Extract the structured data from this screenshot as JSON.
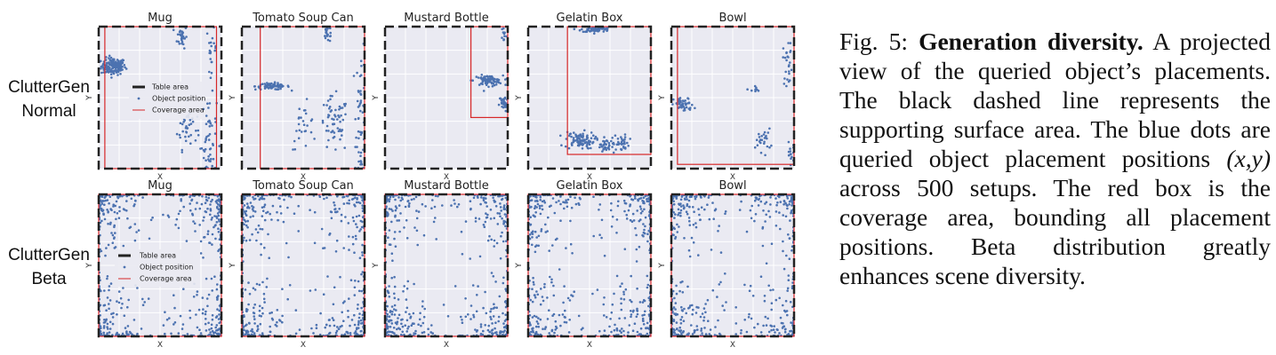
{
  "row_labels": [
    {
      "line1": "ClutterGen",
      "line2": "Normal"
    },
    {
      "line1": "ClutterGen",
      "line2": "Beta"
    }
  ],
  "axis_labels": {
    "x": "X",
    "y": "Y"
  },
  "legend": {
    "table": "Table area",
    "points": "Object position",
    "coverage": "Coverage area"
  },
  "colors": {
    "points": "#4c72b0",
    "coverage": "#d62728",
    "table": "#222222",
    "panel_bg": "#eaeaf2"
  },
  "chart_data": [
    {
      "type": "scatter",
      "row": "Normal",
      "title": "Mug",
      "xlim": [
        0,
        1
      ],
      "ylim": [
        0,
        1
      ],
      "coverage": [
        0.05,
        0.96,
        0.0,
        1.0
      ],
      "clusters": [
        {
          "cx": 0.12,
          "cy": 0.72,
          "sx": 0.05,
          "sy": 0.03,
          "n": 150
        },
        {
          "cx": 0.68,
          "cy": 0.93,
          "sx": 0.02,
          "sy": 0.04,
          "n": 30
        },
        {
          "cx": 0.72,
          "cy": 0.3,
          "sx": 0.04,
          "sy": 0.08,
          "n": 40
        },
        {
          "cx": 0.9,
          "cy": 0.2,
          "sx": 0.03,
          "sy": 0.15,
          "n": 50
        },
        {
          "cx": 0.92,
          "cy": 0.85,
          "sx": 0.02,
          "sy": 0.08,
          "n": 20
        }
      ]
    },
    {
      "type": "scatter",
      "row": "Normal",
      "title": "Tomato Soup Can",
      "xlim": [
        0,
        1
      ],
      "ylim": [
        0,
        1
      ],
      "coverage": [
        0.15,
        1.0,
        0.0,
        1.0
      ],
      "clusters": [
        {
          "cx": 0.25,
          "cy": 0.58,
          "sx": 0.07,
          "sy": 0.012,
          "n": 70
        },
        {
          "cx": 0.7,
          "cy": 0.95,
          "sx": 0.02,
          "sy": 0.03,
          "n": 20
        },
        {
          "cx": 0.75,
          "cy": 0.3,
          "sx": 0.06,
          "sy": 0.1,
          "n": 60
        },
        {
          "cx": 0.97,
          "cy": 0.4,
          "sx": 0.02,
          "sy": 0.25,
          "n": 50
        },
        {
          "cx": 0.5,
          "cy": 0.3,
          "sx": 0.05,
          "sy": 0.08,
          "n": 25
        }
      ]
    },
    {
      "type": "scatter",
      "row": "Normal",
      "title": "Mustard Bottle",
      "xlim": [
        0,
        1
      ],
      "ylim": [
        0,
        1
      ],
      "coverage": [
        0.7,
        1.0,
        0.36,
        1.0
      ],
      "clusters": [
        {
          "cx": 0.84,
          "cy": 0.62,
          "sx": 0.06,
          "sy": 0.018,
          "n": 80
        },
        {
          "cx": 0.97,
          "cy": 0.46,
          "sx": 0.02,
          "sy": 0.03,
          "n": 40
        },
        {
          "cx": 0.97,
          "cy": 0.95,
          "sx": 0.01,
          "sy": 0.03,
          "n": 10
        }
      ]
    },
    {
      "type": "scatter",
      "row": "Normal",
      "title": "Gelatin Box",
      "xlim": [
        0,
        1
      ],
      "ylim": [
        0,
        1
      ],
      "coverage": [
        0.32,
        1.0,
        0.1,
        1.0
      ],
      "clusters": [
        {
          "cx": 0.55,
          "cy": 0.98,
          "sx": 0.06,
          "sy": 0.01,
          "n": 60
        },
        {
          "cx": 0.42,
          "cy": 0.2,
          "sx": 0.06,
          "sy": 0.03,
          "n": 90
        },
        {
          "cx": 0.72,
          "cy": 0.18,
          "sx": 0.05,
          "sy": 0.03,
          "n": 50
        },
        {
          "cx": 0.62,
          "cy": 0.15,
          "sx": 0.03,
          "sy": 0.02,
          "n": 20
        }
      ]
    },
    {
      "type": "scatter",
      "row": "Normal",
      "title": "Bowl",
      "xlim": [
        0,
        1
      ],
      "ylim": [
        0,
        1
      ],
      "coverage": [
        0.05,
        1.0,
        0.03,
        1.0
      ],
      "clusters": [
        {
          "cx": 0.1,
          "cy": 0.45,
          "sx": 0.04,
          "sy": 0.025,
          "n": 50
        },
        {
          "cx": 0.75,
          "cy": 0.2,
          "sx": 0.03,
          "sy": 0.04,
          "n": 25
        },
        {
          "cx": 0.95,
          "cy": 0.75,
          "sx": 0.02,
          "sy": 0.08,
          "n": 25
        },
        {
          "cx": 0.97,
          "cy": 0.1,
          "sx": 0.02,
          "sy": 0.04,
          "n": 15
        },
        {
          "cx": 0.68,
          "cy": 0.55,
          "sx": 0.02,
          "sy": 0.02,
          "n": 8
        }
      ]
    },
    {
      "type": "scatter",
      "row": "Beta",
      "title": "Mug",
      "xlim": [
        0,
        1
      ],
      "ylim": [
        0,
        1
      ],
      "coverage": [
        0.0,
        1.0,
        0.0,
        1.0
      ],
      "distribution": "beta",
      "n": 500
    },
    {
      "type": "scatter",
      "row": "Beta",
      "title": "Tomato Soup Can",
      "xlim": [
        0,
        1
      ],
      "ylim": [
        0,
        1
      ],
      "coverage": [
        0.0,
        1.0,
        0.0,
        1.0
      ],
      "distribution": "beta",
      "n": 500
    },
    {
      "type": "scatter",
      "row": "Beta",
      "title": "Mustard Bottle",
      "xlim": [
        0,
        1
      ],
      "ylim": [
        0,
        1
      ],
      "coverage": [
        0.0,
        1.0,
        0.0,
        1.0
      ],
      "distribution": "beta",
      "n": 500
    },
    {
      "type": "scatter",
      "row": "Beta",
      "title": "Gelatin Box",
      "xlim": [
        0,
        1
      ],
      "ylim": [
        0,
        1
      ],
      "coverage": [
        0.0,
        1.0,
        0.0,
        1.0
      ],
      "distribution": "beta",
      "n": 500
    },
    {
      "type": "scatter",
      "row": "Beta",
      "title": "Bowl",
      "xlim": [
        0,
        1
      ],
      "ylim": [
        0,
        1
      ],
      "coverage": [
        0.0,
        1.0,
        0.0,
        1.0
      ],
      "distribution": "beta",
      "n": 500
    }
  ],
  "caption": {
    "label": "Fig. 5:",
    "title": "Generation diversity.",
    "text1": "A projected view of the queried object’s placements. The black dashed line represents the supporting surface area. The blue dots are queried object placement positions",
    "math": "(x,y)",
    "text2": "across 500 setups. The red box is the coverage area, bounding all placement positions. Beta distribution greatly enhances scene diversity."
  }
}
